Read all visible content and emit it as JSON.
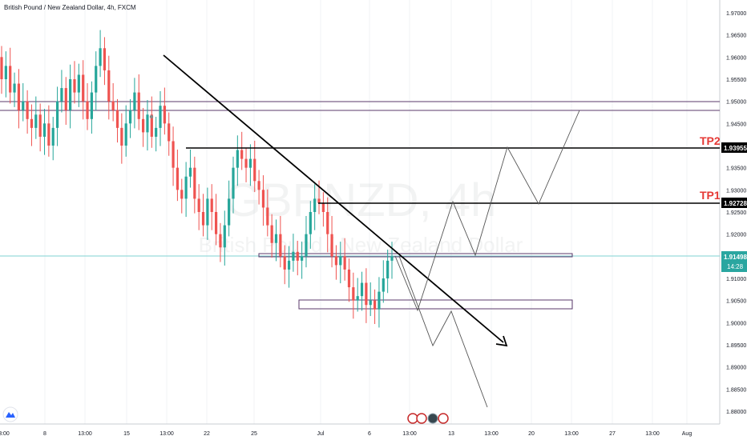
{
  "header": {
    "title": "British Pound / New Zealand Dollar, 4h, FXCM"
  },
  "watermark": {
    "symbol": "GBPNZD, 4h",
    "description": "British Pound / New Zealand Dollar"
  },
  "colors": {
    "up": "#26a69a",
    "down": "#ef5350",
    "tp_label": "#e53935",
    "price_line": "#7fd3d3",
    "price_badge": "#2aa6a0"
  },
  "chart_data": {
    "type": "candlestick",
    "yaxis": {
      "range": [
        1.8775,
        1.9725
      ],
      "ticks": [
        "1.97000",
        "1.96500",
        "1.96000",
        "1.95500",
        "1.95000",
        "1.94500",
        "1.94000",
        "1.93500",
        "1.93000",
        "1.92500",
        "1.92000",
        "1.91500",
        "1.91000",
        "1.90500",
        "1.90000",
        "1.89500",
        "1.89000",
        "1.88500",
        "1.88000"
      ]
    },
    "xaxis": {
      "ticks": [
        "3:00",
        "8",
        "13:00",
        "15",
        "13:00",
        "22",
        "25",
        "Jul",
        "6",
        "13:00",
        "13",
        "13:00",
        "20",
        "13:00",
        "27",
        "13:00",
        "Aug"
      ]
    },
    "levels": [
      {
        "name": "TP2",
        "value": 1.93955,
        "label": "1.93955"
      },
      {
        "name": "TP1",
        "value": 1.92728,
        "label": "1.92728"
      }
    ],
    "resistance_zone": [
      1.9482,
      1.9502
    ],
    "current_price": {
      "value": 1.91498,
      "label": "1.91498",
      "countdown": "14:28"
    },
    "zones": [
      {
        "top": 1.9154,
        "bottom": 1.9148
      },
      {
        "top": 1.9055,
        "bottom": 1.9035
      }
    ],
    "candles_close": [
      1.955,
      1.958,
      1.952,
      1.954,
      1.948,
      1.95,
      1.946,
      1.944,
      1.947,
      1.942,
      1.945,
      1.94,
      1.944,
      1.95,
      1.953,
      1.948,
      1.955,
      1.952,
      1.956,
      1.95,
      1.946,
      1.952,
      1.958,
      1.962,
      1.957,
      1.95,
      1.948,
      1.944,
      1.94,
      1.945,
      1.948,
      1.952,
      1.946,
      1.943,
      1.947,
      1.942,
      1.944,
      1.949,
      1.945,
      1.941,
      1.935,
      1.93,
      1.928,
      1.933,
      1.935,
      1.928,
      1.925,
      1.922,
      1.928,
      1.925,
      1.92,
      1.917,
      1.922,
      1.928,
      1.935,
      1.939,
      1.937,
      1.935,
      1.937,
      1.932,
      1.93,
      1.926,
      1.922,
      1.918,
      1.92,
      1.915,
      1.912,
      1.914,
      1.916,
      1.914,
      1.915,
      1.92,
      1.925,
      1.928,
      1.927,
      1.925,
      1.92,
      1.915,
      1.913,
      1.915,
      1.912,
      1.908,
      1.905,
      1.906,
      1.909,
      1.904,
      1.905,
      1.903,
      1.907,
      1.91,
      1.914,
      1.915
    ],
    "trend_arrow": [
      [
        0.17,
        1.9605
      ],
      [
        0.68,
        1.8935
      ]
    ],
    "projections": [
      [
        [
          0.52,
          1.9155
        ],
        [
          0.56,
          1.9035
        ],
        [
          0.61,
          1.9275
        ],
        [
          0.64,
          1.9155
        ],
        [
          0.68,
          1.9395
        ],
        [
          0.72,
          1.9275
        ],
        [
          0.775,
          1.948
        ]
      ],
      [
        [
          0.535,
          1.9155
        ],
        [
          0.58,
          1.8955
        ],
        [
          0.605,
          1.9025
        ],
        [
          0.655,
          1.8815
        ]
      ]
    ]
  }
}
